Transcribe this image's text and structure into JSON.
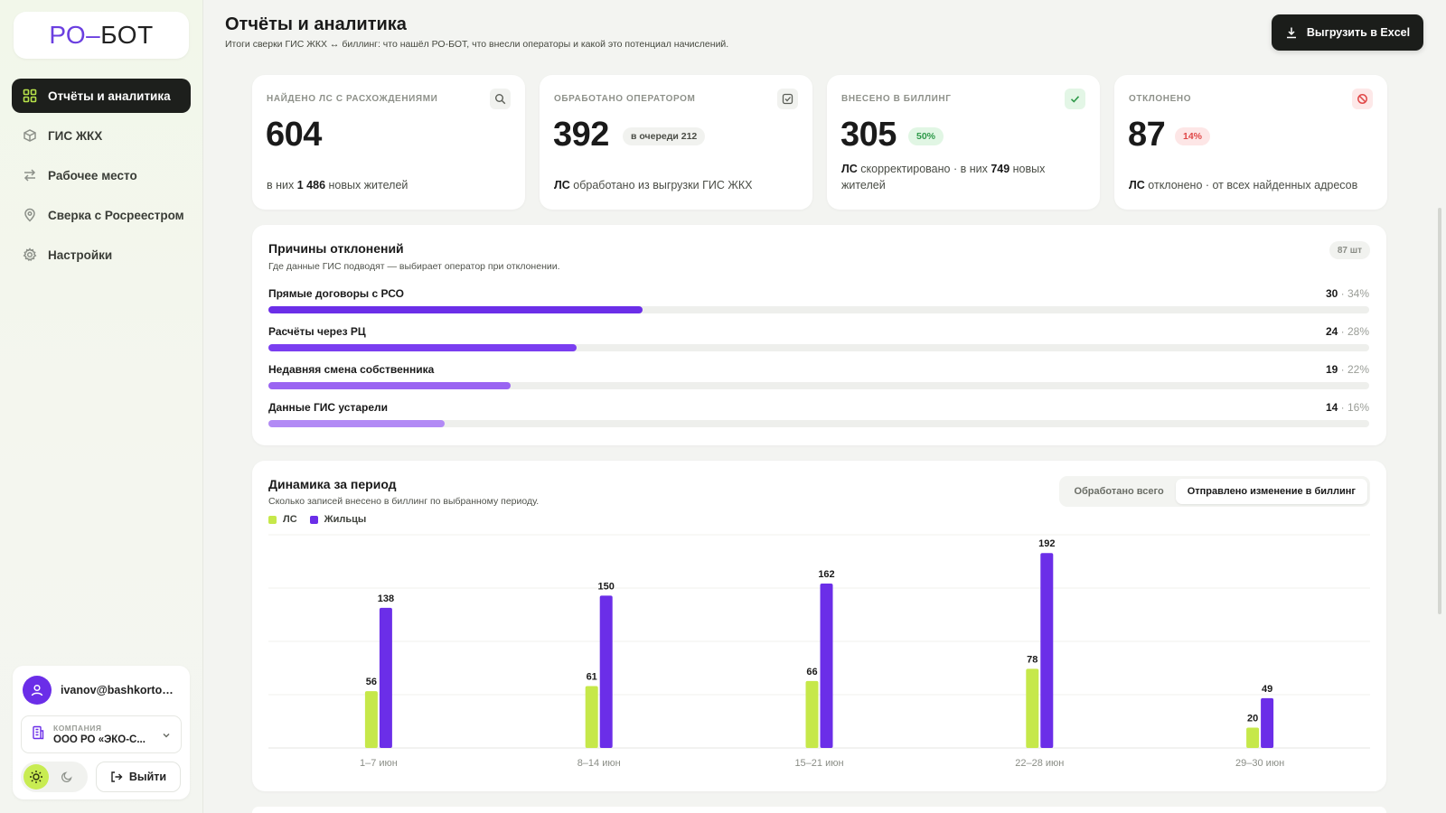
{
  "logo": {
    "part1": "РО",
    "dash": "–",
    "part2": "БОТ"
  },
  "sidebar": {
    "items": [
      {
        "label": "Отчёты и аналитика",
        "icon": "dashboard-icon"
      },
      {
        "label": "ГИС ЖКХ",
        "icon": "box-icon"
      },
      {
        "label": "Рабочее место",
        "icon": "transfer-icon"
      },
      {
        "label": "Сверка с Росреестром",
        "icon": "map-pin-icon"
      },
      {
        "label": "Настройки",
        "icon": "gear-icon"
      }
    ]
  },
  "user": {
    "email": "ivanov@bashkortost...",
    "company_key": "КОМПАНИЯ",
    "company_value": "ООО РО «ЭКО-С...",
    "logout": "Выйти"
  },
  "header": {
    "title": "Отчёты и аналитика",
    "subtitle": "Итоги сверки ГИС ЖКХ ↔ биллинг: что нашёл РО-БОТ, что внесли операторы и какой это потенциал начислений.",
    "export": "Выгрузить в Excel"
  },
  "kpis": [
    {
      "label": "НАЙДЕНО ЛС С РАСХОЖДЕНИЯМИ",
      "value": "604",
      "badge": "",
      "foot_pre": "в них ",
      "foot_b1": "1 486",
      "foot_post": " новых жителей"
    },
    {
      "label": "ОБРАБОТАНО ОПЕРАТОРОМ",
      "value": "392",
      "badge": "в очереди 212",
      "foot_b1": "ЛС",
      "foot_post": " обработано из выгрузки ГИС ЖКХ"
    },
    {
      "label": "ВНЕСЕНО В БИЛЛИНГ",
      "value": "305",
      "badge": "50%",
      "foot_b1": "ЛС",
      "foot_mid": " скорректировано · в них ",
      "foot_b2": "749",
      "foot_post": " новых жителей"
    },
    {
      "label": "ОТКЛОНЕНО",
      "value": "87",
      "badge": "14%",
      "foot_b1": "ЛС",
      "foot_post": " отклонено · от всех найденных адресов"
    }
  ],
  "reasons": {
    "title": "Причины отклонений",
    "subtitle": "Где данные ГИС подводят — выбирает оператор при отклонении.",
    "count": "87 шт",
    "items": [
      {
        "label": "Прямые договоры с РСО",
        "count": "30",
        "pct": "34%",
        "fraction": 0.34
      },
      {
        "label": "Расчёты через РЦ",
        "count": "24",
        "pct": "28%",
        "fraction": 0.28
      },
      {
        "label": "Недавняя смена собственника",
        "count": "19",
        "pct": "22%",
        "fraction": 0.22
      },
      {
        "label": "Данные ГИС устарели",
        "count": "14",
        "pct": "16%",
        "fraction": 0.16
      }
    ]
  },
  "dynamics": {
    "title": "Динамика за период",
    "subtitle": "Сколько записей внесено в биллинг по выбранному периоду.",
    "tabs": [
      "Обработано всего",
      "Отправлено изменение в биллинг"
    ],
    "active_tab": 1
  },
  "chart_data": {
    "type": "bar",
    "categories": [
      "1–7 июн",
      "8–14 июн",
      "15–21 июн",
      "22–28 июн",
      "29–30 июн"
    ],
    "series": [
      {
        "name": "ЛС",
        "values": [
          56,
          61,
          66,
          78,
          20
        ],
        "color": "#c6e84a"
      },
      {
        "name": "Жильцы",
        "values": [
          138,
          150,
          162,
          192,
          49
        ],
        "color": "#6b2ee8"
      }
    ],
    "ylim": [
      0,
      210
    ],
    "grid": true,
    "legend": "top-left"
  },
  "colors": {
    "accent_purple": "#6b2ee8",
    "accent_lime": "#c6e84a",
    "dark": "#1b1d1a"
  }
}
